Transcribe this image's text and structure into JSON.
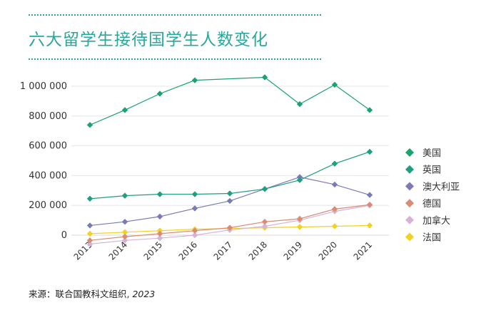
{
  "title": "六大留学生接待国学生人数变化",
  "source": {
    "label": "来源：联合国教科文组织, ",
    "year": "2023"
  },
  "chart_data": {
    "type": "line",
    "title": "六大留学生接待国学生人数变化",
    "xlabel": "",
    "ylabel": "",
    "x": [
      "2013",
      "2014",
      "2015",
      "2016",
      "2017",
      "2018",
      "2019",
      "2020",
      "2021"
    ],
    "yticks": [
      {
        "value": 0,
        "label": "0"
      },
      {
        "value": 200000,
        "label": "200 000"
      },
      {
        "value": 400000,
        "label": "400 000"
      },
      {
        "value": 600000,
        "label": "600 000"
      },
      {
        "value": 800000,
        "label": "800 000"
      },
      {
        "value": 1000000,
        "label": "1 000 000"
      }
    ],
    "ylim": [
      0,
      1000000
    ],
    "grid": true,
    "legend": "right",
    "series": [
      {
        "name": "美国",
        "color": "#1aa36e",
        "values": [
          740000,
          840000,
          950000,
          1040000,
          null,
          1060000,
          880000,
          1010000,
          840000
        ]
      },
      {
        "name": "英国",
        "color": "#1f9e80",
        "values": [
          245000,
          265000,
          275000,
          275000,
          280000,
          310000,
          370000,
          480000,
          560000
        ]
      },
      {
        "name": "澳大利亚",
        "color": "#7b7bb3",
        "values": [
          65000,
          90000,
          125000,
          180000,
          230000,
          310000,
          390000,
          340000,
          270000
        ]
      },
      {
        "name": "德国",
        "color": "#d98b73",
        "values": [
          -35000,
          -10000,
          10000,
          30000,
          50000,
          90000,
          110000,
          175000,
          205000
        ]
      },
      {
        "name": "加拿大",
        "color": "#d6b3d6",
        "values": [
          -60000,
          -35000,
          -20000,
          0,
          35000,
          60000,
          100000,
          160000,
          200000
        ]
      },
      {
        "name": "法国",
        "color": "#f2d21e",
        "values": [
          10000,
          20000,
          30000,
          40000,
          45000,
          50000,
          55000,
          60000,
          65000
        ]
      }
    ]
  }
}
